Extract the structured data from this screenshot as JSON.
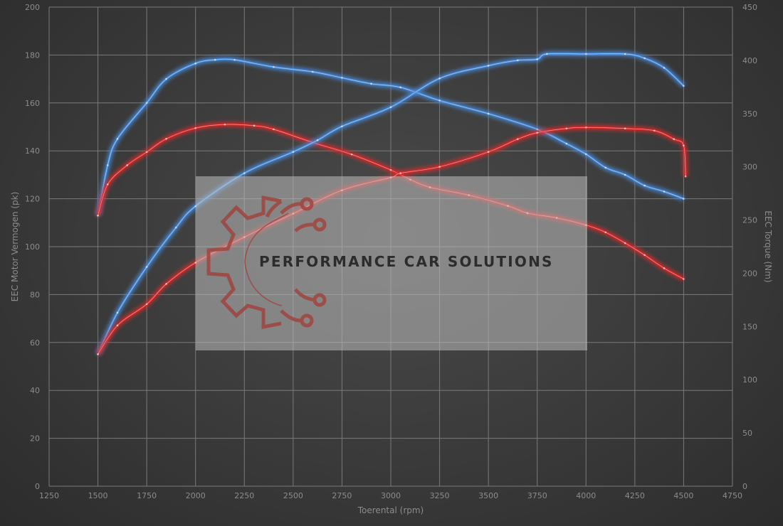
{
  "chart_data": {
    "type": "line",
    "title": "",
    "xlabel": "Toerental (rpm)",
    "ylabel_left": "EEC Motor Vermogen (pk)",
    "ylabel_right": "EEC Torque (Nm)",
    "xlim": [
      1250,
      4750
    ],
    "ylim_left": [
      0,
      200
    ],
    "ylim_right": [
      0,
      450
    ],
    "xticks": [
      1250,
      1500,
      1750,
      2000,
      2250,
      2500,
      2750,
      3000,
      3250,
      3500,
      3750,
      4000,
      4250,
      4500,
      4750
    ],
    "yticks_left": [
      0,
      20,
      40,
      60,
      80,
      100,
      120,
      140,
      160,
      180,
      200
    ],
    "yticks_right": [
      0,
      50,
      100,
      150,
      200,
      250,
      300,
      350,
      400,
      450
    ],
    "grid": true,
    "colors": {
      "tuned": "#4a90e2",
      "stock": "#e02a2a"
    },
    "series": [
      {
        "axis": "left",
        "color": "#4a90e2",
        "x": [
          1500,
          1550,
          1600,
          1750,
          1850,
          2000,
          2100,
          2200,
          2400,
          2600,
          2750,
          2900,
          3050,
          3250,
          3500,
          3750,
          3900,
          4000,
          4100,
          4200,
          4300,
          4400,
          4500
        ],
        "y": [
          113,
          134,
          145,
          160,
          170,
          176.5,
          178,
          178,
          175,
          173,
          170.5,
          168,
          166.5,
          161,
          155.5,
          149,
          143,
          138.6,
          133,
          130,
          125.5,
          123,
          120
        ]
      },
      {
        "axis": "left",
        "color": "#e02a2a",
        "x": [
          1500,
          1550,
          1650,
          1750,
          1850,
          2000,
          2150,
          2300,
          2400,
          2600,
          2800,
          3000,
          3100,
          3200,
          3400,
          3600,
          3700,
          3850,
          4000,
          4100,
          4200,
          4300,
          4400,
          4500
        ],
        "y": [
          113,
          126,
          134,
          139.5,
          145,
          149.5,
          151,
          150.5,
          149,
          143.5,
          138.5,
          132,
          128,
          124.8,
          121.5,
          117,
          114,
          112,
          109,
          106,
          101.5,
          96.5,
          91,
          86.5
        ]
      },
      {
        "axis": "right",
        "color": "#4a90e2",
        "x": [
          1500,
          1600,
          1750,
          1900,
          2000,
          2250,
          2500,
          2625,
          2750,
          3000,
          3250,
          3500,
          3650,
          3750,
          3800,
          4000,
          4200,
          4300,
          4400,
          4500
        ],
        "y": [
          124,
          163,
          206,
          243,
          263,
          294,
          314,
          325,
          338,
          356,
          383,
          395,
          400,
          401,
          406,
          406,
          406,
          402,
          393,
          376
        ]
      },
      {
        "axis": "right",
        "color": "#e02a2a",
        "x": [
          1500,
          1600,
          1750,
          1850,
          2000,
          2250,
          2500,
          2750,
          3000,
          3050,
          3250,
          3500,
          3650,
          3750,
          3900,
          4000,
          4200,
          4350,
          4450,
          4500,
          4510
        ],
        "y": [
          124,
          151,
          171,
          190,
          210,
          234,
          256,
          278,
          290,
          294,
          300,
          314,
          326,
          332,
          336,
          337,
          336,
          334,
          326,
          320,
          291
        ]
      }
    ]
  },
  "watermark": {
    "text": "PERFORMANCE CAR SOLUTIONS",
    "logo": "gear-circuit-logo"
  }
}
